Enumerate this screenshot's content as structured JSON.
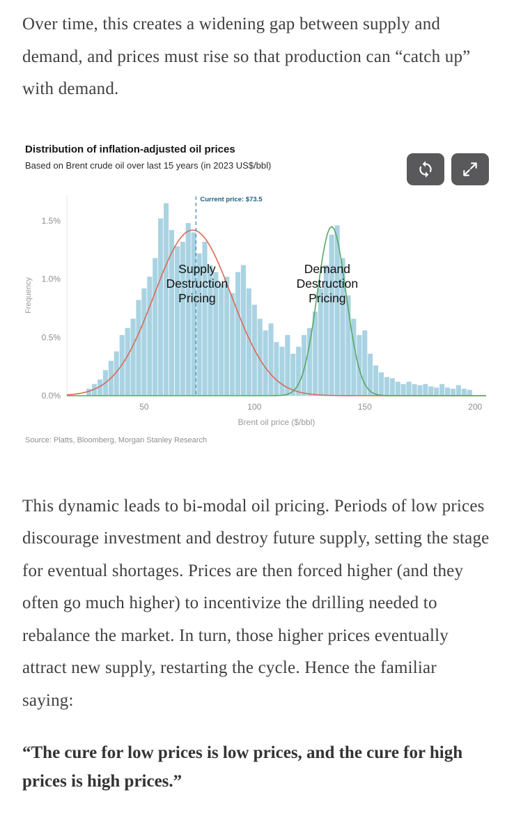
{
  "article": {
    "intro": "Over time, this creates a widening gap between supply and demand, and prices must rise so that production can “catch up” with demand.",
    "body": "This dynamic leads to bi-modal oil pricing. Periods of low prices discourage investment and destroy future supply, setting the stage for eventual shortages. Prices are then forced higher (and they often go much higher) to incentivize the drilling needed to rebalance the market. In turn, those higher prices eventually attract new supply, restarting the cycle. Hence the familiar saying:",
    "quote": "“The cure for low prices is low prices, and the cure for high prices is high prices.”"
  },
  "controls": {
    "refresh_button": "refresh",
    "expand_button": "expand"
  },
  "chart_data": {
    "type": "bar",
    "title": "Distribution of inflation-adjusted oil prices",
    "subtitle": "Based on Brent crude oil over last 15 years (in 2023 US$/bbl)",
    "xlabel": "Brent oil price ($/bbl)",
    "ylabel": "Frequency",
    "source": "Source: Platts, Bloomberg, Morgan Stanley Research",
    "xlim": [
      15,
      205
    ],
    "ylim": [
      0,
      1.72
    ],
    "x_ticks": [
      50,
      100,
      150,
      200
    ],
    "y_ticks": [
      {
        "v": 0,
        "label": "0.0%"
      },
      {
        "v": 0.5,
        "label": "0.5%"
      },
      {
        "v": 1.0,
        "label": "1.0%"
      },
      {
        "v": 1.5,
        "label": "1.5%"
      }
    ],
    "bar_color": "#a9d3e2",
    "bin_width": 2.5,
    "bins": [
      [
        25,
        0.06
      ],
      [
        27.5,
        0.1
      ],
      [
        30,
        0.14
      ],
      [
        32.5,
        0.22
      ],
      [
        35,
        0.3
      ],
      [
        37.5,
        0.38
      ],
      [
        40,
        0.52
      ],
      [
        42.5,
        0.58
      ],
      [
        45,
        0.66
      ],
      [
        47.5,
        0.82
      ],
      [
        50,
        0.92
      ],
      [
        52.5,
        1.02
      ],
      [
        55,
        1.18
      ],
      [
        57.5,
        1.52
      ],
      [
        60,
        1.65
      ],
      [
        62.5,
        1.42
      ],
      [
        65,
        1.28
      ],
      [
        67.5,
        1.32
      ],
      [
        70,
        1.48
      ],
      [
        72.5,
        1.4
      ],
      [
        75,
        1.22
      ],
      [
        77.5,
        1.32
      ],
      [
        80,
        1.12
      ],
      [
        82.5,
        1.06
      ],
      [
        85,
        0.96
      ],
      [
        87.5,
        1.02
      ],
      [
        90,
        0.88
      ],
      [
        92.5,
        1.06
      ],
      [
        95,
        1.12
      ],
      [
        97.5,
        0.92
      ],
      [
        100,
        0.78
      ],
      [
        102.5,
        0.66
      ],
      [
        105,
        0.56
      ],
      [
        107.5,
        0.62
      ],
      [
        110,
        0.46
      ],
      [
        112.5,
        0.42
      ],
      [
        115,
        0.52
      ],
      [
        117.5,
        0.36
      ],
      [
        120,
        0.42
      ],
      [
        122.5,
        0.52
      ],
      [
        125,
        0.58
      ],
      [
        127.5,
        0.72
      ],
      [
        130,
        0.92
      ],
      [
        132.5,
        1.12
      ],
      [
        135,
        1.38
      ],
      [
        137.5,
        1.46
      ],
      [
        140,
        1.18
      ],
      [
        142.5,
        0.86
      ],
      [
        145,
        0.66
      ],
      [
        147.5,
        0.52
      ],
      [
        150,
        0.56
      ],
      [
        152.5,
        0.36
      ],
      [
        155,
        0.26
      ],
      [
        157.5,
        0.2
      ],
      [
        160,
        0.16
      ],
      [
        162.5,
        0.15
      ],
      [
        165,
        0.12
      ],
      [
        167.5,
        0.1
      ],
      [
        170,
        0.12
      ],
      [
        172.5,
        0.1
      ],
      [
        175,
        0.09
      ],
      [
        177.5,
        0.1
      ],
      [
        180,
        0.08
      ],
      [
        182.5,
        0.07
      ],
      [
        185,
        0.1
      ],
      [
        187.5,
        0.07
      ],
      [
        190,
        0.06
      ],
      [
        192.5,
        0.09
      ],
      [
        195,
        0.06
      ],
      [
        197.5,
        0.05
      ]
    ],
    "curves": [
      {
        "name": "Supply Destruction Pricing",
        "color": "#d96a53",
        "mean": 72,
        "sd": 17.5,
        "peak": 1.42
      },
      {
        "name": "Demand Destruction Pricing",
        "color": "#57a766",
        "mean": 135,
        "sd": 6.5,
        "peak": 1.45
      }
    ],
    "current_price": {
      "label": "Current price: $73.5",
      "value": 73.5,
      "line_color": "#4a89a8",
      "text_color": "#1d6080"
    },
    "annotations": [
      {
        "x": 74,
        "y": 1.05,
        "lines": [
          "Supply",
          "Destruction",
          "Pricing"
        ]
      },
      {
        "x": 133,
        "y": 1.05,
        "lines": [
          "Demand",
          "Destruction",
          "Pricing"
        ]
      }
    ]
  }
}
